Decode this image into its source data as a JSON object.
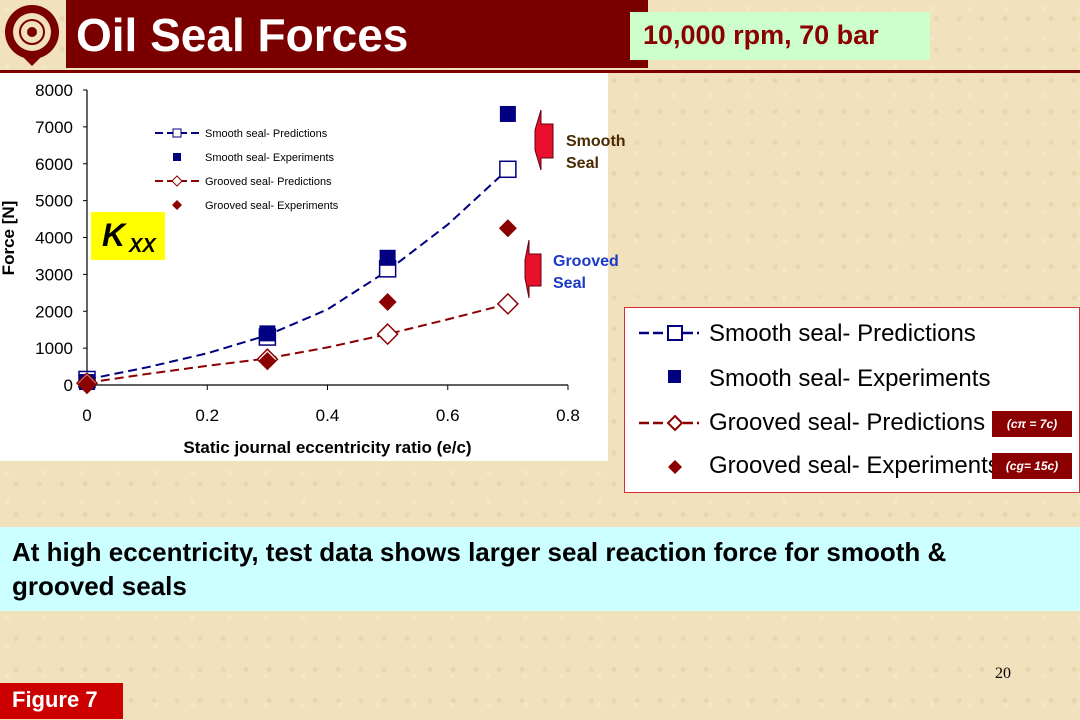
{
  "header": {
    "title": "Oil Seal Forces",
    "conditions": "10,000 rpm, 70 bar"
  },
  "chart_data": {
    "type": "scatter",
    "xlabel": "Static journal eccentricity ratio (e/c)",
    "ylabel": "Force [N]",
    "xlim": [
      0,
      0.8
    ],
    "ylim": [
      0,
      8000
    ],
    "x_ticks": [
      "0",
      "0.2",
      "0.4",
      "0.6",
      "0.8"
    ],
    "y_ticks": [
      "0",
      "1000",
      "2000",
      "3000",
      "4000",
      "5000",
      "6000",
      "7000",
      "8000"
    ],
    "grid": false,
    "legend_position": "top-left",
    "annotation": {
      "main": "K",
      "sub": "XX"
    },
    "series": [
      {
        "name": "Smooth seal- Predictions",
        "marker": "open-square",
        "line": "dashed",
        "color": "#000080",
        "x": [
          0,
          0.3,
          0.5,
          0.7
        ],
        "y": [
          150,
          1300,
          3150,
          5850
        ]
      },
      {
        "name": "Smooth seal- Experiments",
        "marker": "filled-square",
        "line": "none",
        "color": "#000080",
        "x": [
          0,
          0.3,
          0.5,
          0.7
        ],
        "y": [
          80,
          1400,
          3450,
          7350
        ]
      },
      {
        "name": "Grooved seal- Predictions",
        "marker": "open-diamond",
        "line": "dashed",
        "color": "#8b0000",
        "x": [
          0,
          0.3,
          0.5,
          0.7
        ],
        "y": [
          50,
          700,
          1380,
          2200
        ]
      },
      {
        "name": "Grooved seal- Experiments",
        "marker": "filled-diamond",
        "line": "none",
        "color": "#8b0000",
        "x": [
          0,
          0.3,
          0.5,
          0.7
        ],
        "y": [
          30,
          650,
          2250,
          4250
        ]
      }
    ],
    "fit_curves": [
      {
        "series": "Smooth seal- Predictions",
        "x": [
          0,
          0.1,
          0.2,
          0.3,
          0.4,
          0.5,
          0.6,
          0.7
        ],
        "y": [
          150,
          480,
          860,
          1350,
          2050,
          3100,
          4350,
          5850
        ]
      },
      {
        "series": "Grooved seal- Predictions",
        "x": [
          0,
          0.1,
          0.2,
          0.3,
          0.4,
          0.5,
          0.6,
          0.7
        ],
        "y": [
          60,
          300,
          520,
          720,
          1020,
          1380,
          1780,
          2200
        ]
      }
    ]
  },
  "callouts": {
    "smooth": "Smooth Seal",
    "grooved": "Grooved Seal"
  },
  "legend": {
    "entries": [
      "Smooth seal- Predictions",
      "Smooth seal- Experiments",
      "Grooved seal- Predictions",
      "Grooved seal- Experiments"
    ],
    "notes": [
      "(cπ = 7c)",
      "(cg= 15c)"
    ]
  },
  "conclusion": "At high eccentricity, test data shows larger seal reaction force for smooth & grooved seals",
  "footer": {
    "page_number": "20",
    "figure_label": "Figure 7"
  },
  "colors": {
    "title_bg": "#7a0000",
    "conditions_bg": "#ccffcc",
    "conclusion_bg": "#ccffff",
    "figure_bg": "#cc0000",
    "smooth": "#000080",
    "grooved": "#8b0000",
    "callout_arrow": "#e8102a"
  }
}
